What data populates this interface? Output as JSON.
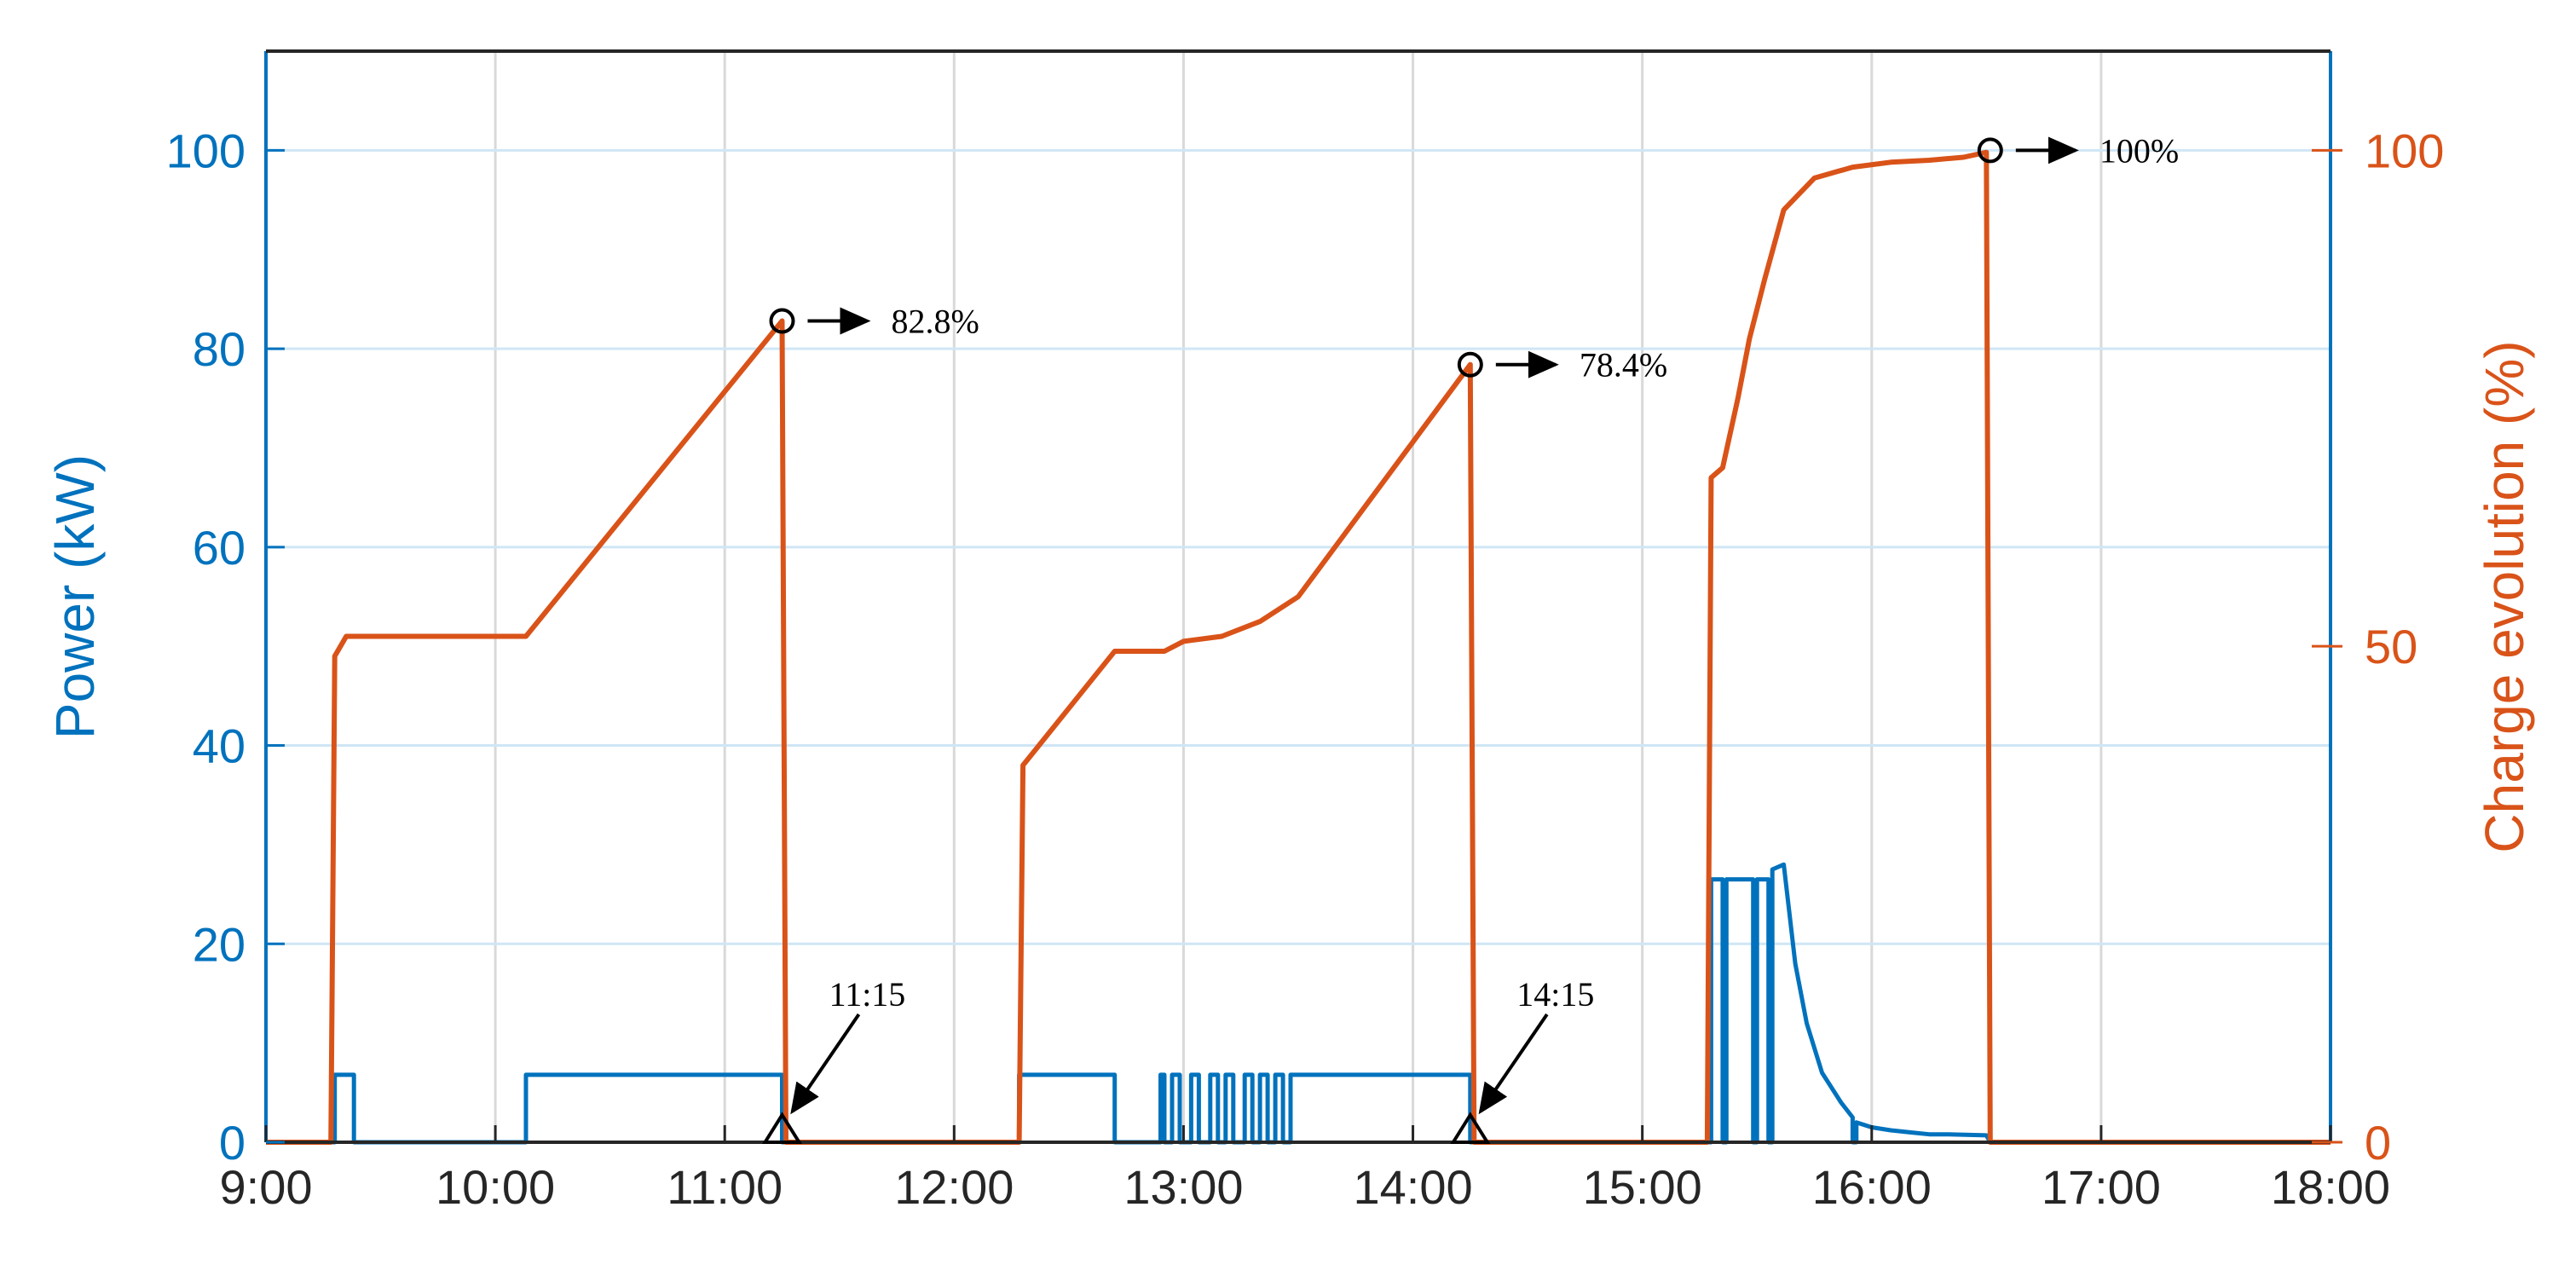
{
  "chart_data": {
    "type": "line",
    "title": "",
    "xlabel": "",
    "ylabel": "Power (kW)",
    "y2label": "Charge evolution (%)",
    "x_ticks": [
      "9:00",
      "10:00",
      "11:00",
      "12:00",
      "13:00",
      "14:00",
      "15:00",
      "16:00",
      "17:00",
      "18:00"
    ],
    "xlim": [
      "9:00",
      "18:00"
    ],
    "ylim": [
      0,
      110
    ],
    "y_ticks": [
      "0",
      "20",
      "40",
      "60",
      "80",
      "100"
    ],
    "y2lim": [
      0,
      110
    ],
    "y2_ticks": [
      "0",
      "50",
      "100"
    ],
    "grid": true,
    "colors": {
      "power": "#0072BD",
      "charge": "#D95319",
      "annotation": "#000000",
      "grid": "#d9d9d9"
    },
    "series": [
      {
        "axis": "left",
        "points": [
          [
            "9:00",
            0
          ],
          [
            "9:18",
            0
          ],
          [
            "9:18",
            6.8
          ],
          [
            "9:23",
            6.8
          ],
          [
            "9:23",
            0
          ],
          [
            "10:08",
            0
          ],
          [
            "10:08",
            6.8
          ],
          [
            "11:15",
            6.8
          ],
          [
            "11:15",
            0
          ],
          [
            "12:17",
            0
          ],
          [
            "12:17",
            6.8
          ],
          [
            "12:42",
            6.8
          ],
          [
            "12:42",
            0
          ],
          [
            "12:54",
            0
          ],
          [
            "12:54",
            6.8
          ],
          [
            "12:55",
            6.8
          ],
          [
            "12:55",
            0
          ],
          [
            "12:57",
            0
          ],
          [
            "12:57",
            6.8
          ],
          [
            "12:59",
            6.8
          ],
          [
            "12:59",
            0
          ],
          [
            "13:02",
            0
          ],
          [
            "13:02",
            6.8
          ],
          [
            "13:04",
            6.8
          ],
          [
            "13:04",
            0
          ],
          [
            "13:07",
            0
          ],
          [
            "13:07",
            6.8
          ],
          [
            "13:09",
            6.8
          ],
          [
            "13:09",
            0
          ],
          [
            "13:11",
            0
          ],
          [
            "13:11",
            6.8
          ],
          [
            "13:13",
            6.8
          ],
          [
            "13:13",
            0
          ],
          [
            "13:16",
            0
          ],
          [
            "13:16",
            6.8
          ],
          [
            "13:18",
            6.8
          ],
          [
            "13:18",
            0
          ],
          [
            "13:20",
            0
          ],
          [
            "13:20",
            6.8
          ],
          [
            "13:22",
            6.8
          ],
          [
            "13:22",
            0
          ],
          [
            "13:24",
            0
          ],
          [
            "13:24",
            6.8
          ],
          [
            "13:26",
            6.8
          ],
          [
            "13:26",
            0
          ],
          [
            "13:28",
            0
          ],
          [
            "13:28",
            6.8
          ],
          [
            "14:15",
            6.8
          ],
          [
            "14:15",
            0
          ],
          [
            "15:18",
            0
          ],
          [
            "15:18",
            26.5
          ],
          [
            "15:21",
            26.5
          ],
          [
            "15:21",
            0
          ],
          [
            "15:22",
            0
          ],
          [
            "15:22",
            26.5
          ],
          [
            "15:29",
            26.5
          ],
          [
            "15:29",
            0
          ],
          [
            "15:30",
            0
          ],
          [
            "15:30",
            26.5
          ],
          [
            "15:33",
            26.5
          ],
          [
            "15:33",
            0
          ],
          [
            "15:34",
            0
          ],
          [
            "15:34",
            27.5
          ],
          [
            "15:37",
            28
          ],
          [
            "15:40",
            18
          ],
          [
            "15:43",
            12
          ],
          [
            "15:47",
            7
          ],
          [
            "15:52",
            4
          ],
          [
            "15:55",
            2.5
          ],
          [
            "15:55",
            0
          ],
          [
            "15:56",
            0
          ],
          [
            "15:56",
            2
          ],
          [
            "16:00",
            1.5
          ],
          [
            "16:05",
            1.2
          ],
          [
            "16:10",
            1
          ],
          [
            "16:15",
            0.8
          ],
          [
            "16:20",
            0.8
          ],
          [
            "16:30",
            0.7
          ],
          [
            "16:31",
            0
          ],
          [
            "18:00",
            0
          ]
        ]
      },
      {
        "axis": "right",
        "points": [
          [
            "9:00",
            0
          ],
          [
            "9:17",
            0
          ],
          [
            "9:18",
            49
          ],
          [
            "9:21",
            51
          ],
          [
            "10:08",
            51
          ],
          [
            "11:15",
            82.8
          ],
          [
            "11:16",
            0
          ],
          [
            "12:17",
            0
          ],
          [
            "12:18",
            38
          ],
          [
            "12:42",
            49.5
          ],
          [
            "12:55",
            49.5
          ],
          [
            "13:00",
            50.5
          ],
          [
            "13:10",
            51
          ],
          [
            "13:20",
            52.5
          ],
          [
            "13:30",
            55
          ],
          [
            "14:15",
            78.4
          ],
          [
            "14:16",
            0
          ],
          [
            "15:17",
            0
          ],
          [
            "15:18",
            67
          ],
          [
            "15:21",
            68
          ],
          [
            "15:25",
            75
          ],
          [
            "15:28",
            81
          ],
          [
            "15:32",
            87
          ],
          [
            "15:37",
            94
          ],
          [
            "15:45",
            97.2
          ],
          [
            "15:55",
            98.3
          ],
          [
            "16:05",
            98.8
          ],
          [
            "16:15",
            99
          ],
          [
            "16:24",
            99.3
          ],
          [
            "16:30",
            99.8
          ],
          [
            "16:31",
            0
          ],
          [
            "18:00",
            0
          ]
        ]
      }
    ],
    "annotations": [
      {
        "x": "11:15",
        "y2": 82.8,
        "marker": "circle",
        "label": "82.8%"
      },
      {
        "x": "14:15",
        "y2": 78.4,
        "marker": "circle",
        "label": "78.4%"
      },
      {
        "x": "16:31",
        "y2": 100,
        "marker": "circle",
        "label": "100%"
      },
      {
        "x": "11:15",
        "y": 0,
        "marker": "triangle",
        "label": "11:15"
      },
      {
        "x": "14:15",
        "y": 0,
        "marker": "triangle",
        "label": "14:15"
      }
    ]
  }
}
